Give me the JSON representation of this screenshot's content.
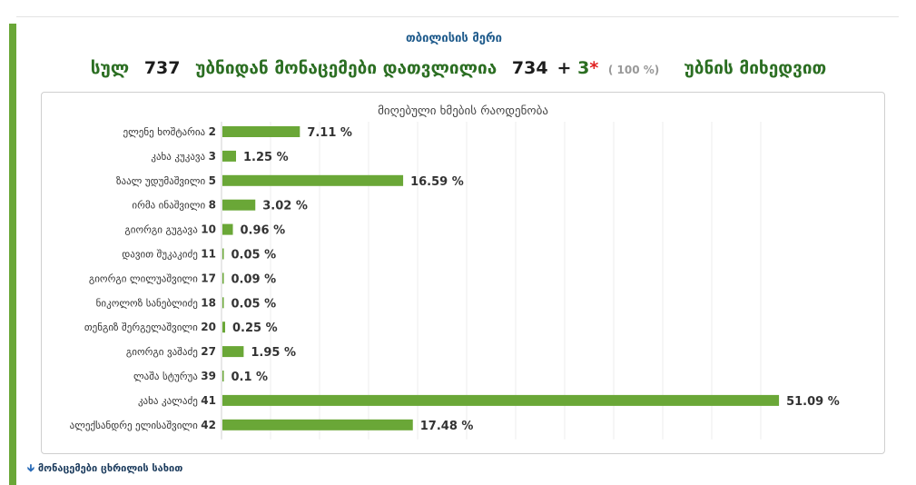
{
  "header": {
    "region": "თბილისის მერი",
    "summary_total_label": "სულ",
    "summary_total": "737",
    "summary_from_label": "უბნიდან მონაცემები დათვლილია",
    "summary_counted": "734",
    "summary_plus": "+",
    "summary_extra": "3",
    "summary_star": "*",
    "summary_percent": "( 100 %)",
    "summary_suffix": "უბნის მიხედვით"
  },
  "chart_data": {
    "type": "bar",
    "orientation": "horizontal",
    "title": "მიღებული ხმების რაოდენობა",
    "categories": [
      "ელენე ხოშტარია 2",
      "კახა კუკავა 3",
      "ზაალ უდუმაშვილი 5",
      "ირმა ინაშვილი 8",
      "გიორგი გუგავა 10",
      "დავით შუკაკიძე 11",
      "გიორგი ლილუაშვილი 17",
      "ნიკოლოზ სანებლიძე 18",
      "თენგიზ შერგელაშვილი 20",
      "გიორგი ვაშაძე 27",
      "ლაშა სტურუა 39",
      "კახა კალაძე 41",
      "ალექსანდრე ელისაშვილი 42"
    ],
    "values": [
      7.11,
      1.25,
      16.59,
      3.02,
      0.96,
      0.05,
      0.09,
      0.05,
      0.25,
      1.95,
      0.1,
      51.09,
      17.48
    ],
    "value_labels": [
      "7.11 %",
      "1.25 %",
      "16.59 %",
      "3.02 %",
      "0.96 %",
      "0.05 %",
      "0.09 %",
      "0.05 %",
      "0.25 %",
      "1.95 %",
      "0.1 %",
      "51.09 %",
      "17.48 %"
    ],
    "xlim": [
      0,
      60
    ],
    "grid": true,
    "bar_color": "#6aa737"
  },
  "footer": {
    "table_link": "მონაცემები ცხრილის სახით"
  }
}
